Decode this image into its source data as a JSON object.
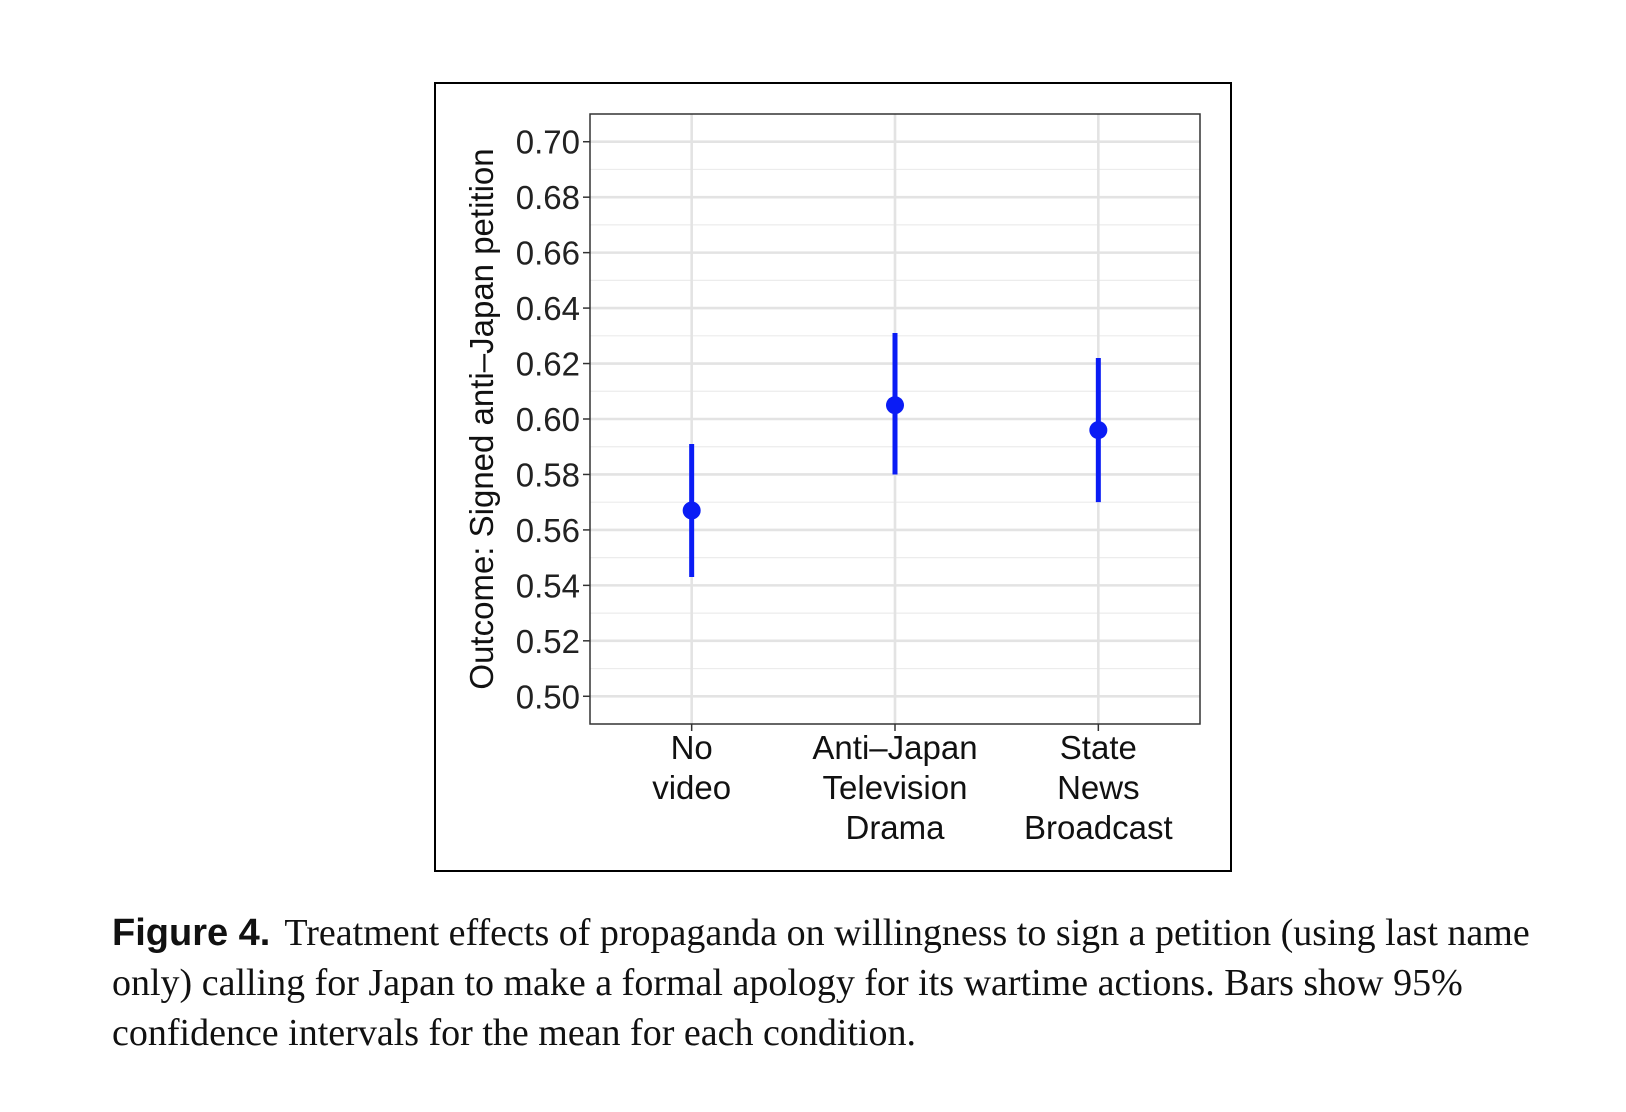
{
  "chart_data": {
    "type": "scatter",
    "subtype": "point-with-error-bars",
    "ylabel": "Outcome: Signed anti–Japan petition",
    "xlabel": "",
    "ylim": [
      0.49,
      0.71
    ],
    "yticks": [
      "0.50",
      "0.52",
      "0.54",
      "0.56",
      "0.58",
      "0.60",
      "0.62",
      "0.64",
      "0.66",
      "0.68",
      "0.70"
    ],
    "categories": [
      [
        "No",
        "video"
      ],
      [
        "Anti–Japan",
        "Television",
        "Drama"
      ],
      [
        "State",
        "News",
        "Broadcast"
      ]
    ],
    "points": [
      {
        "mean": 0.567,
        "lower": 0.543,
        "upper": 0.591
      },
      {
        "mean": 0.605,
        "lower": 0.58,
        "upper": 0.631
      },
      {
        "mean": 0.596,
        "lower": 0.57,
        "upper": 0.622
      }
    ],
    "grid": true,
    "color": "#0a1cf5"
  },
  "caption": {
    "label": "Figure 4.",
    "text": "Treatment effects of propaganda on willingness to sign a petition (using last name only) calling for Japan to make a formal apology for its wartime actions. Bars show 95% confidence intervals for the mean for each condition."
  }
}
